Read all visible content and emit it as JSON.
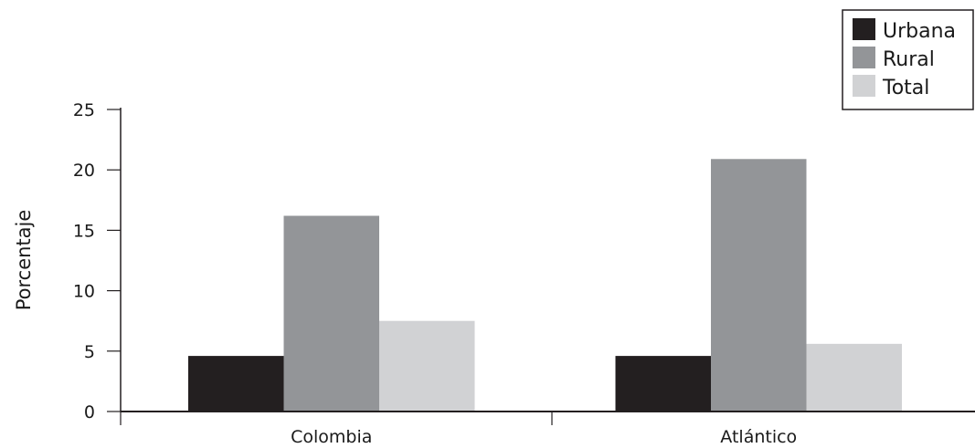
{
  "chart_data": {
    "type": "bar",
    "categories": [
      "Colombia",
      "Atlántico"
    ],
    "series": [
      {
        "name": "Urbana",
        "values": [
          4.6,
          4.6
        ],
        "color": "#231f20"
      },
      {
        "name": "Rural",
        "values": [
          16.2,
          20.9
        ],
        "color": "#939598"
      },
      {
        "name": "Total",
        "values": [
          7.5,
          5.6
        ],
        "color": "#d1d2d4"
      }
    ],
    "yticks": [
      "0",
      "5",
      "10",
      "15",
      "20",
      "25"
    ],
    "ylabel": "Porcentaje",
    "xlabel": "",
    "title": "",
    "ylim": [
      0,
      25
    ],
    "grid": false,
    "legend_position": "top-right"
  }
}
